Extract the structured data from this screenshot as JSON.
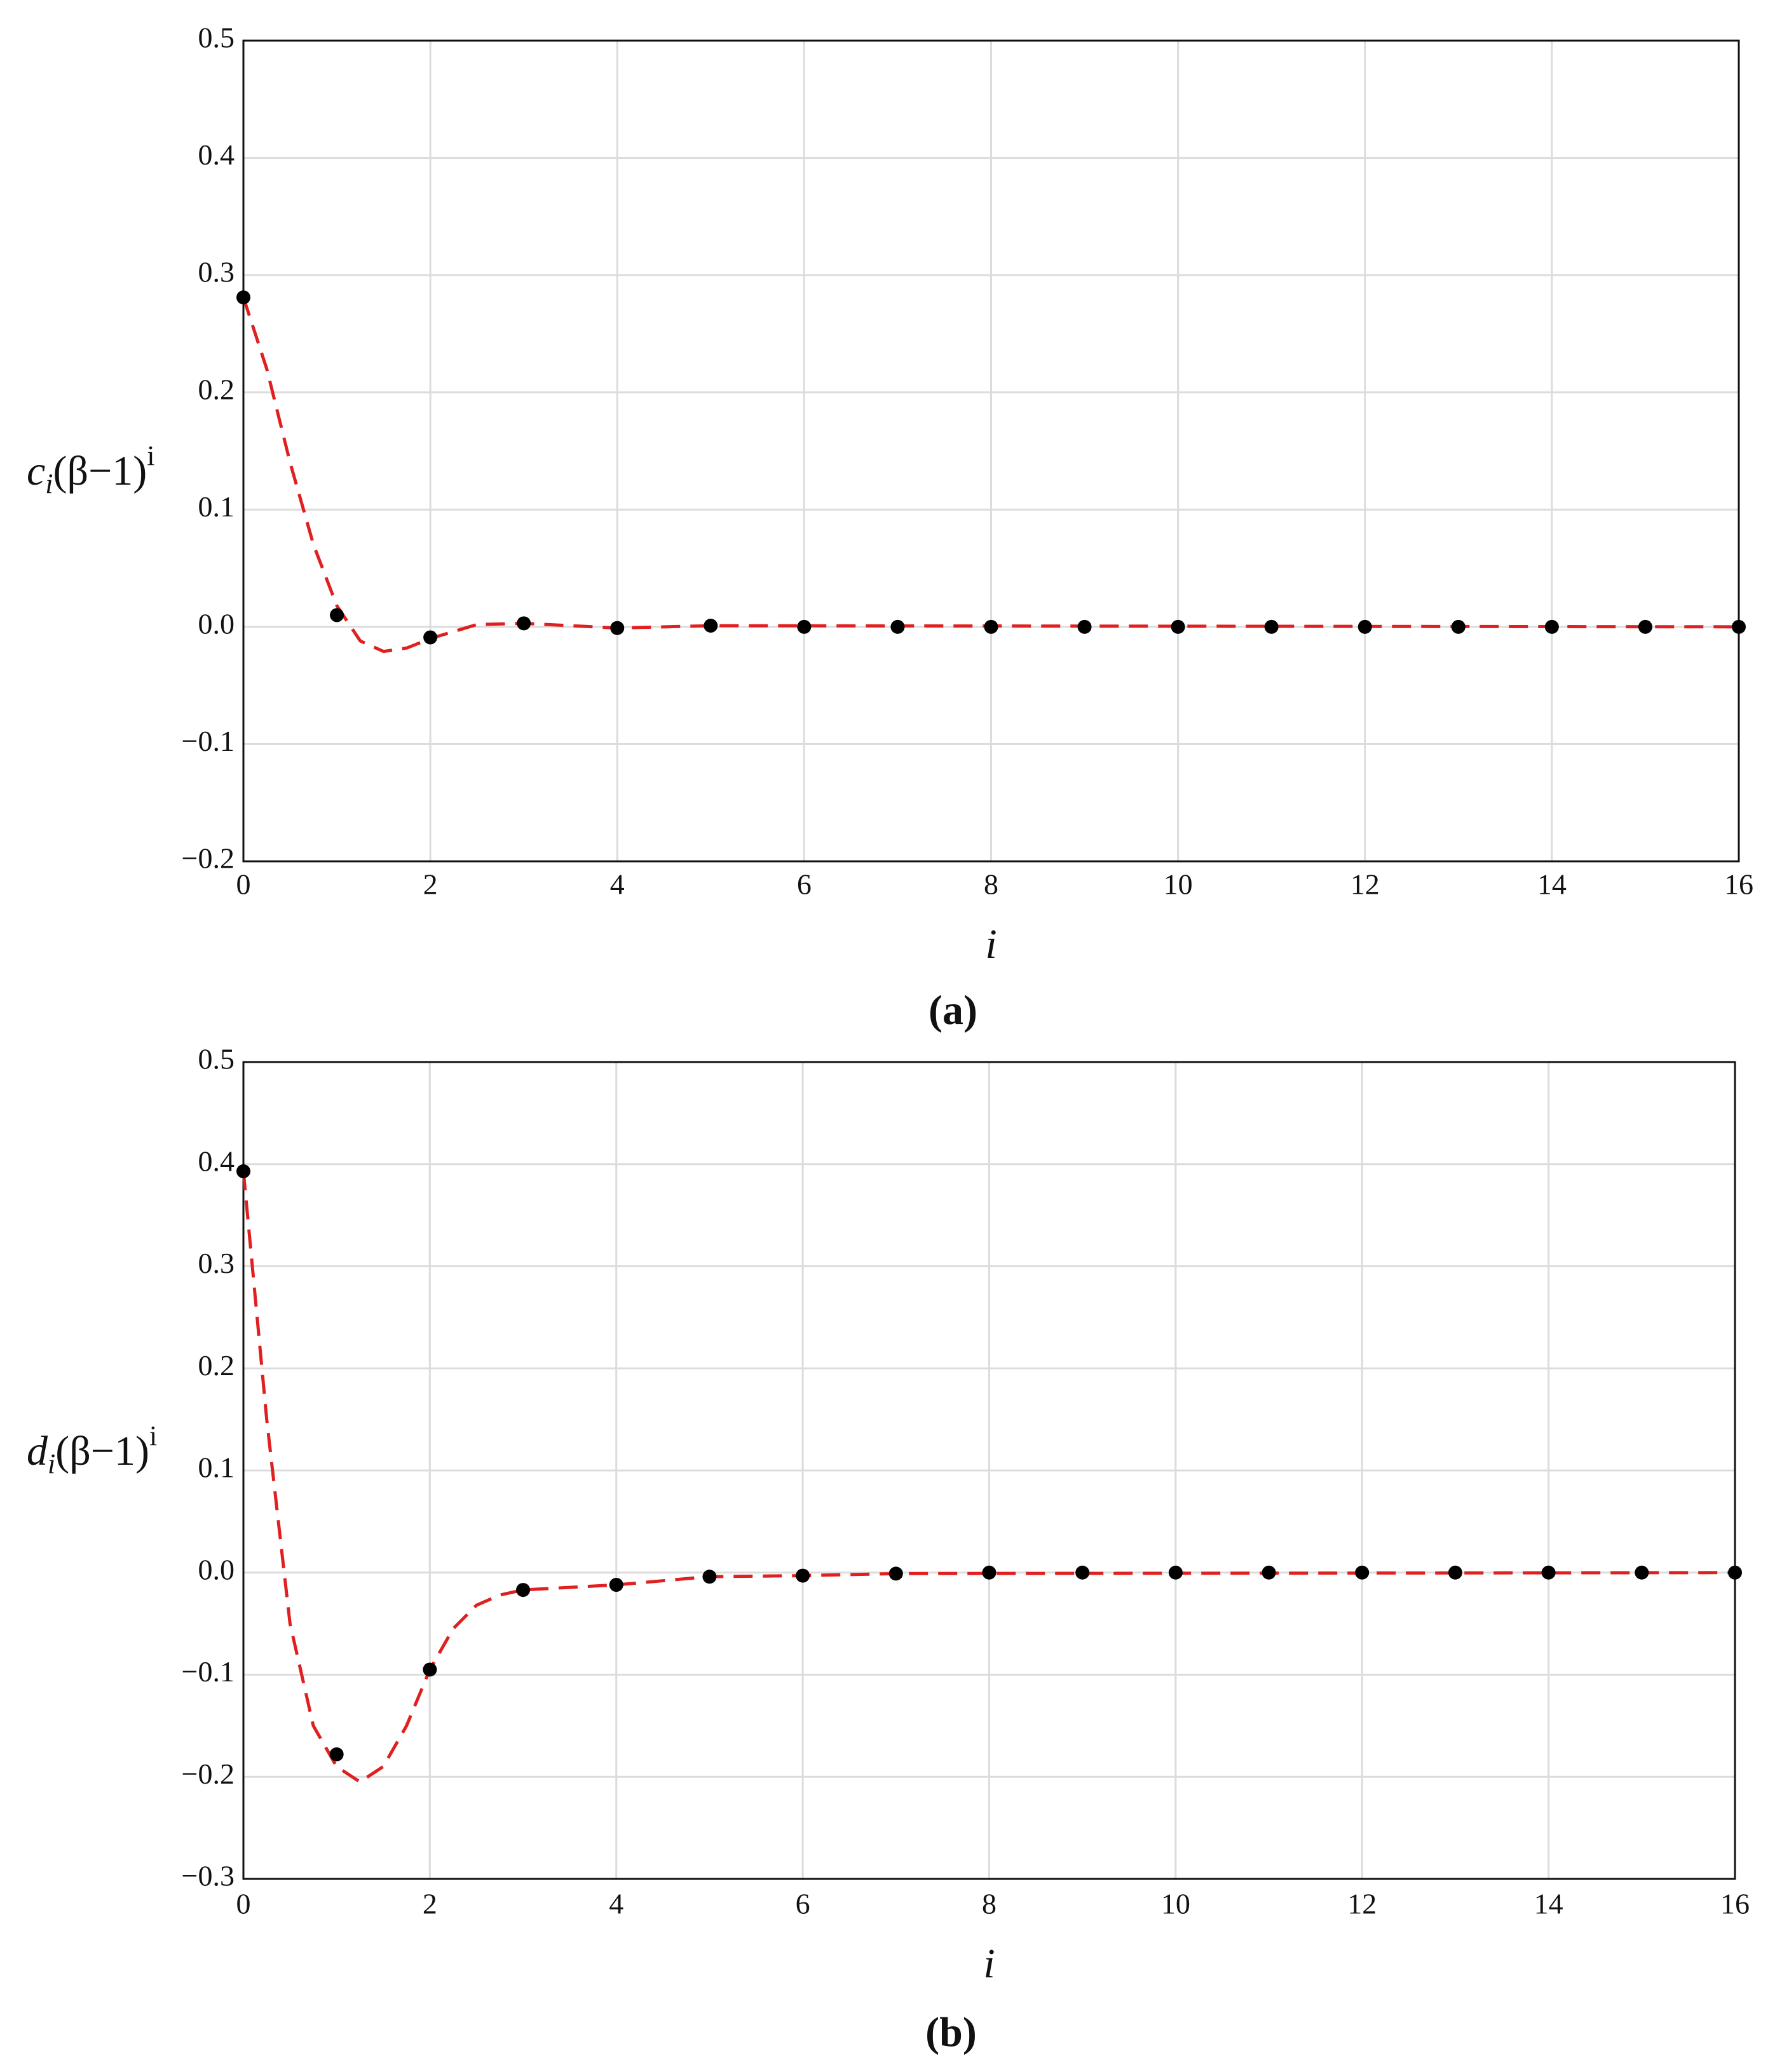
{
  "chart_data": [
    {
      "type": "scatter",
      "caption": "(a)",
      "x_label": "i",
      "y_label": [
        "c",
        "i",
        "(β−1)",
        "i"
      ],
      "xlim": [
        0,
        16
      ],
      "xticks": [
        0,
        2,
        4,
        6,
        8,
        10,
        12,
        14,
        16
      ],
      "ylim": [
        -0.2,
        0.5
      ],
      "yticks": [
        {
          "value": -0.2,
          "label": "−0.2"
        },
        {
          "value": -0.1,
          "label": "−0.1"
        },
        {
          "value": 0,
          "label": "0.0"
        },
        {
          "value": 0.1,
          "label": "0.1"
        },
        {
          "value": 0.2,
          "label": "0.2"
        },
        {
          "value": 0.3,
          "label": "0.3"
        },
        {
          "value": 0.4,
          "label": "0.4"
        },
        {
          "value": 0.5,
          "label": "0.5"
        }
      ],
      "grid": true,
      "series": [
        {
          "color": "#e02020",
          "style": "dashed",
          "x": [
            0,
            0.25,
            0.5,
            0.75,
            1,
            1.25,
            1.5,
            1.75,
            2,
            2.5,
            3,
            3.5,
            4,
            5,
            16
          ],
          "values": [
            0.281,
            0.22,
            0.14,
            0.07,
            0.018,
            -0.012,
            -0.021,
            -0.018,
            -0.01,
            0.002,
            0.003,
            0.001,
            -0.001,
            0.001,
            0
          ]
        },
        {
          "color": "#000000",
          "style": "points",
          "x": [
            0,
            1,
            2,
            3,
            4,
            5,
            6,
            7,
            8,
            9,
            10,
            11,
            12,
            13,
            14,
            15,
            16
          ],
          "values": [
            0.281,
            0.01,
            -0.009,
            0.003,
            -0.001,
            0.001,
            0,
            0,
            0,
            0,
            0,
            0,
            0,
            0,
            0,
            0,
            0
          ]
        }
      ]
    },
    {
      "type": "scatter",
      "caption": "(b)",
      "x_label": "i",
      "y_label": [
        "d",
        "i",
        "(β−1)",
        "i"
      ],
      "xlim": [
        0,
        16
      ],
      "xticks": [
        0,
        2,
        4,
        6,
        8,
        10,
        12,
        14,
        16
      ],
      "ylim": [
        -0.3,
        0.5
      ],
      "yticks": [
        {
          "value": -0.3,
          "label": "−0.3"
        },
        {
          "value": -0.2,
          "label": "−0.2"
        },
        {
          "value": -0.1,
          "label": "−0.1"
        },
        {
          "value": 0,
          "label": "0.0"
        },
        {
          "value": 0.1,
          "label": "0.1"
        },
        {
          "value": 0.2,
          "label": "0.2"
        },
        {
          "value": 0.3,
          "label": "0.3"
        },
        {
          "value": 0.4,
          "label": "0.4"
        },
        {
          "value": 0.5,
          "label": "0.5"
        }
      ],
      "grid": true,
      "series": [
        {
          "color": "#e02020",
          "style": "dashed",
          "x": [
            0,
            0.25,
            0.5,
            0.75,
            1,
            1.25,
            1.5,
            1.75,
            2,
            2.25,
            2.5,
            2.75,
            3,
            4,
            5,
            6,
            7,
            16
          ],
          "values": [
            0.393,
            0.15,
            -0.05,
            -0.15,
            -0.19,
            -0.205,
            -0.19,
            -0.15,
            -0.095,
            -0.055,
            -0.032,
            -0.022,
            -0.017,
            -0.012,
            -0.004,
            -0.003,
            -0.001,
            0
          ]
        },
        {
          "color": "#000000",
          "style": "points",
          "x": [
            0,
            1,
            2,
            3,
            4,
            5,
            6,
            7,
            8,
            9,
            10,
            11,
            12,
            13,
            14,
            15,
            16
          ],
          "values": [
            0.393,
            -0.178,
            -0.095,
            -0.017,
            -0.012,
            -0.004,
            -0.003,
            -0.001,
            0,
            0,
            0,
            0,
            0,
            0,
            0,
            0,
            0
          ]
        }
      ]
    }
  ]
}
